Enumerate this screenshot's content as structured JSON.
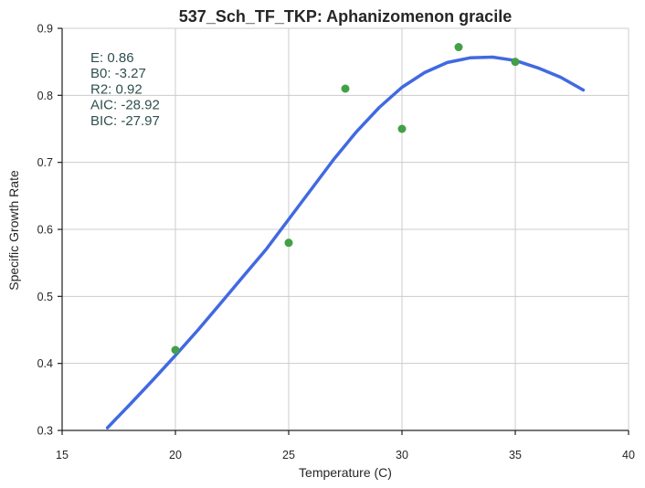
{
  "chart_data": {
    "type": "scatter",
    "title": "537_Sch_TF_TKP: Aphanizomenon gracile",
    "xlabel": "Temperature (C)",
    "ylabel": "Specific Growth Rate",
    "xlim": [
      15,
      40
    ],
    "ylim": [
      0.3,
      0.9
    ],
    "xticks": [
      15,
      20,
      25,
      30,
      35,
      40
    ],
    "yticks": [
      0.3,
      0.4,
      0.5,
      0.6,
      0.7,
      0.8,
      0.9
    ],
    "grid": true,
    "points": {
      "color": "#43a047",
      "x": [
        20,
        25,
        27.5,
        30,
        32.5,
        35
      ],
      "y": [
        0.42,
        0.58,
        0.81,
        0.75,
        0.872,
        0.85
      ]
    },
    "fit_curve": {
      "color": "#4169e1",
      "x": [
        17,
        18,
        19,
        20,
        21,
        22,
        23,
        24,
        25,
        26,
        27,
        28,
        29,
        30,
        31,
        32,
        33,
        34,
        35,
        36,
        37,
        38
      ],
      "y": [
        0.304,
        0.339,
        0.375,
        0.412,
        0.45,
        0.49,
        0.53,
        0.57,
        0.615,
        0.66,
        0.705,
        0.746,
        0.782,
        0.812,
        0.834,
        0.849,
        0.856,
        0.857,
        0.852,
        0.841,
        0.827,
        0.808
      ]
    },
    "annotations": [
      "E:  0.86",
      "B0:  -3.27",
      "R2:  0.92",
      "AIC: -28.92",
      "BIC: -27.97"
    ]
  }
}
